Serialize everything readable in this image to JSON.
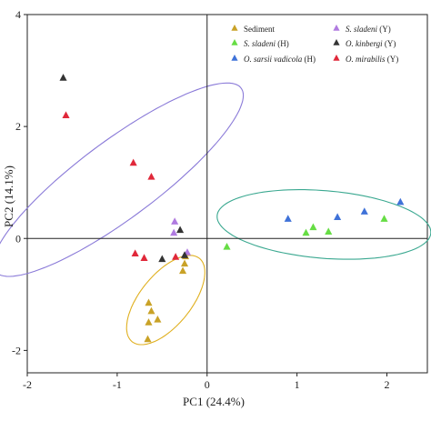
{
  "chart_data": {
    "type": "scatter",
    "title": "",
    "xlabel": "PC1 (24.4%)",
    "ylabel": "PC2 (14.1%)",
    "xlim": [
      -2,
      2.45
    ],
    "ylim": [
      -2.4,
      4.0
    ],
    "xticks": [
      -2,
      -1,
      0,
      1,
      2
    ],
    "yticks": [
      -2,
      0,
      2,
      4
    ],
    "zero_lines": true,
    "grid": false,
    "legend_position": "top-right",
    "series": [
      {
        "name": "Sediment",
        "name_parts": [
          {
            "text": "Sediment",
            "italic": false
          }
        ],
        "color": "#c9a227",
        "points": [
          {
            "x": -0.65,
            "y": -1.15
          },
          {
            "x": -0.62,
            "y": -1.3
          },
          {
            "x": -0.55,
            "y": -1.45
          },
          {
            "x": -0.65,
            "y": -1.5
          },
          {
            "x": -0.66,
            "y": -1.8
          },
          {
            "x": -0.25,
            "y": -0.45
          },
          {
            "x": -0.27,
            "y": -0.58
          },
          {
            "x": -0.24,
            "y": -0.32
          }
        ]
      },
      {
        "name": "S. sladeni (H)",
        "name_parts": [
          {
            "text": "S. sladeni",
            "italic": true
          },
          {
            "text": " (H)",
            "italic": false
          }
        ],
        "color": "#66dd44",
        "points": [
          {
            "x": 0.22,
            "y": -0.15
          },
          {
            "x": 1.1,
            "y": 0.1
          },
          {
            "x": 1.18,
            "y": 0.2
          },
          {
            "x": 1.35,
            "y": 0.12
          },
          {
            "x": 1.97,
            "y": 0.35
          }
        ]
      },
      {
        "name": "O. sarsii vadicola (H)",
        "name_parts": [
          {
            "text": "O. sarsii vadicola",
            "italic": true
          },
          {
            "text": " (H)",
            "italic": false
          }
        ],
        "color": "#3f72d8",
        "points": [
          {
            "x": 0.9,
            "y": 0.35
          },
          {
            "x": 1.45,
            "y": 0.38
          },
          {
            "x": 1.75,
            "y": 0.48
          },
          {
            "x": 2.15,
            "y": 0.65
          }
        ]
      },
      {
        "name": "S. sladeni (Y)",
        "name_parts": [
          {
            "text": "S. sladeni",
            "italic": true
          },
          {
            "text": " (Y)",
            "italic": false
          }
        ],
        "color": "#b07be0",
        "points": [
          {
            "x": -0.36,
            "y": 0.3
          },
          {
            "x": -0.37,
            "y": 0.1
          },
          {
            "x": -0.22,
            "y": -0.25
          }
        ]
      },
      {
        "name": "O. kinbergi (Y)",
        "name_parts": [
          {
            "text": "O. kinbergi",
            "italic": true
          },
          {
            "text": " (Y)",
            "italic": false
          }
        ],
        "color": "#333333",
        "points": [
          {
            "x": -1.6,
            "y": 2.87
          },
          {
            "x": -0.3,
            "y": 0.15
          },
          {
            "x": -0.5,
            "y": -0.37
          },
          {
            "x": -0.25,
            "y": -0.3
          }
        ]
      },
      {
        "name": "O. mirabilis (Y)",
        "name_parts": [
          {
            "text": "O. mirabilis",
            "italic": true
          },
          {
            "text": " (Y)",
            "italic": false
          }
        ],
        "color": "#e0283a",
        "points": [
          {
            "x": -1.57,
            "y": 2.2
          },
          {
            "x": -0.82,
            "y": 1.35
          },
          {
            "x": -0.62,
            "y": 1.1
          },
          {
            "x": -0.8,
            "y": -0.27
          },
          {
            "x": -0.7,
            "y": -0.35
          },
          {
            "x": -0.35,
            "y": -0.33
          }
        ]
      }
    ],
    "ellipses": [
      {
        "name": "purple-cluster",
        "color": "#8a7ad8",
        "cx": -0.99,
        "cy": 1.05,
        "rx": 2.15,
        "ry": 0.55,
        "rotation_deg": 52
      },
      {
        "name": "teal-cluster",
        "color": "#3aa890",
        "cx": 1.3,
        "cy": 0.25,
        "rx": 1.2,
        "ry": 0.6,
        "rotation_deg": -9
      },
      {
        "name": "orange-cluster",
        "color": "#e0b020",
        "cx": -0.46,
        "cy": -1.1,
        "rx": 0.85,
        "ry": 0.32,
        "rotation_deg": 68
      }
    ]
  }
}
